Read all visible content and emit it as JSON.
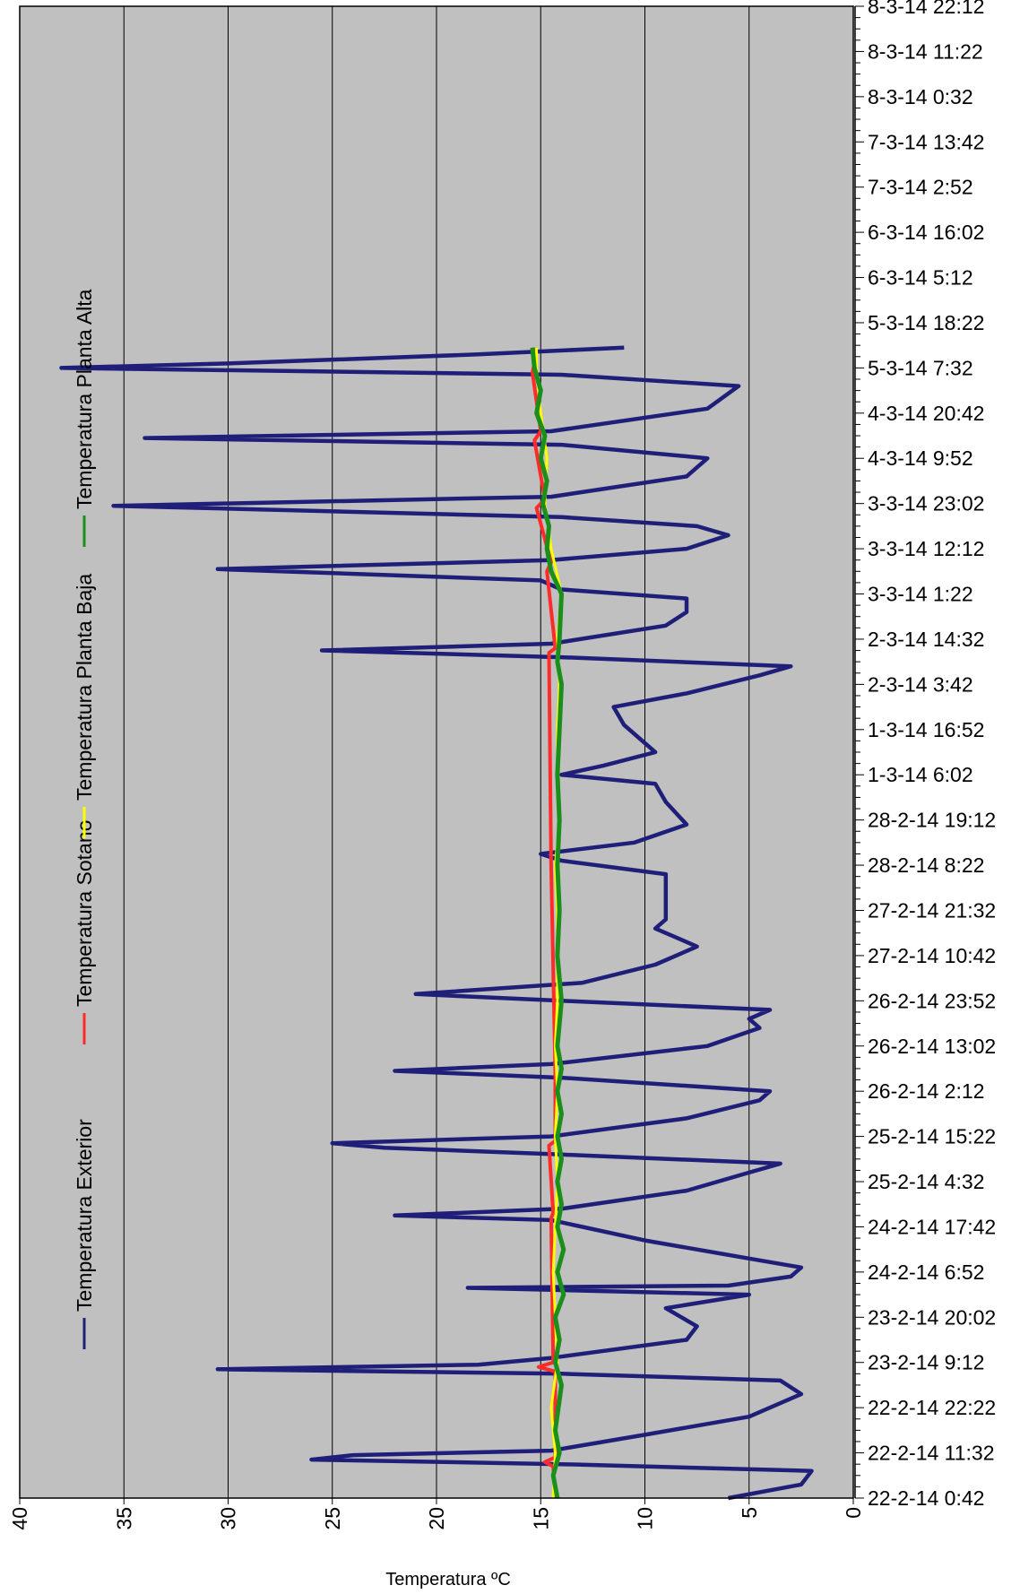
{
  "chart_data": {
    "type": "line",
    "orientation": "rotated-90",
    "xlabel": "Temperatura ºC",
    "ylabel": "",
    "xlim": [
      0,
      40
    ],
    "x_reversed": true,
    "x_ticks": [
      0,
      5,
      10,
      15,
      20,
      25,
      30,
      35,
      40
    ],
    "time_labels": [
      "22-2-14 0:42",
      "22-2-14 11:32",
      "22-2-14 22:22",
      "23-2-14 9:12",
      "23-2-14 20:02",
      "24-2-14 6:52",
      "24-2-14 17:42",
      "25-2-14 4:32",
      "25-2-14 15:22",
      "26-2-14 2:12",
      "26-2-14 13:02",
      "26-2-14 23:52",
      "27-2-14 10:42",
      "27-2-14 21:32",
      "28-2-14 8:22",
      "28-2-14 19:12",
      "1-3-14 6:02",
      "1-3-14 16:52",
      "2-3-14 3:42",
      "2-3-14 14:32",
      "3-3-14 1:22",
      "3-3-14 12:12",
      "3-3-14 23:02",
      "4-3-14 9:52",
      "4-3-14 20:42",
      "5-3-14 7:32",
      "5-3-14 18:22",
      "6-3-14 5:12",
      "6-3-14 16:02",
      "7-3-14 2:52",
      "7-3-14 13:42",
      "8-3-14 0:32",
      "8-3-14 11:22",
      "8-3-14 22:12"
    ],
    "grid": "vertical",
    "background": "#c0c0c0",
    "legend_position": "left, rotated",
    "series": [
      {
        "name": "Temperatura Exterior",
        "color": "#1f1f7a",
        "points": [
          [
            0,
            6
          ],
          [
            0.3,
            2.5
          ],
          [
            0.6,
            2
          ],
          [
            0.75,
            14
          ],
          [
            0.85,
            26
          ],
          [
            0.95,
            24
          ],
          [
            1.05,
            14.5
          ],
          [
            1.4,
            10
          ],
          [
            1.8,
            5
          ],
          [
            2.3,
            2.5
          ],
          [
            2.6,
            3.5
          ],
          [
            2.75,
            14
          ],
          [
            2.85,
            30.5
          ],
          [
            2.95,
            18
          ],
          [
            3.1,
            14.5
          ],
          [
            3.5,
            8
          ],
          [
            3.8,
            7.5
          ],
          [
            4.2,
            9
          ],
          [
            4.5,
            5
          ],
          [
            4.6,
            14
          ],
          [
            4.65,
            18.5
          ],
          [
            4.7,
            6
          ],
          [
            4.9,
            3
          ],
          [
            5.1,
            2.5
          ],
          [
            5.3,
            5
          ],
          [
            5.7,
            10
          ],
          [
            6.0,
            13
          ],
          [
            6.15,
            14.5
          ],
          [
            6.25,
            22
          ],
          [
            6.4,
            14
          ],
          [
            6.8,
            8
          ],
          [
            7.2,
            5
          ],
          [
            7.4,
            3.5
          ],
          [
            7.6,
            14
          ],
          [
            7.75,
            22.5
          ],
          [
            7.85,
            25
          ],
          [
            8.0,
            14.5
          ],
          [
            8.4,
            8
          ],
          [
            8.8,
            4.5
          ],
          [
            9.0,
            4
          ],
          [
            9.3,
            14
          ],
          [
            9.45,
            22
          ],
          [
            9.6,
            14.5
          ],
          [
            10.0,
            7
          ],
          [
            10.4,
            4.5
          ],
          [
            10.6,
            5
          ],
          [
            10.8,
            4
          ],
          [
            11.0,
            14
          ],
          [
            11.15,
            21
          ],
          [
            11.4,
            13
          ],
          [
            11.8,
            9.5
          ],
          [
            12.2,
            7.5
          ],
          [
            12.4,
            8.5
          ],
          [
            12.6,
            9.5
          ],
          [
            12.8,
            9
          ],
          [
            13.4,
            9
          ],
          [
            13.8,
            9
          ],
          [
            14.1,
            14
          ],
          [
            14.25,
            15
          ],
          [
            14.5,
            10.5
          ],
          [
            14.9,
            8
          ],
          [
            15.4,
            9
          ],
          [
            15.8,
            9.5
          ],
          [
            16.0,
            14
          ],
          [
            16.2,
            12
          ],
          [
            16.5,
            9.5
          ],
          [
            17.1,
            11
          ],
          [
            17.5,
            11.5
          ],
          [
            17.8,
            8
          ],
          [
            18.2,
            4.5
          ],
          [
            18.4,
            3
          ],
          [
            18.6,
            14
          ],
          [
            18.75,
            25.5
          ],
          [
            18.9,
            14.5
          ],
          [
            19.3,
            9
          ],
          [
            19.6,
            8
          ],
          [
            19.9,
            8
          ],
          [
            20.1,
            14
          ],
          [
            20.3,
            15
          ],
          [
            20.55,
            30.5
          ],
          [
            20.75,
            14.5
          ],
          [
            21.0,
            8
          ],
          [
            21.3,
            6
          ],
          [
            21.5,
            7.5
          ],
          [
            21.7,
            14
          ],
          [
            21.95,
            35.5
          ],
          [
            22.15,
            14.5
          ],
          [
            22.6,
            8
          ],
          [
            23.0,
            7
          ],
          [
            23.3,
            14
          ],
          [
            23.45,
            34
          ],
          [
            23.6,
            14.5
          ],
          [
            24.1,
            7
          ],
          [
            24.6,
            5.5
          ],
          [
            24.85,
            14
          ],
          [
            25.0,
            38
          ],
          [
            25.1,
            30
          ],
          [
            25.3,
            18
          ],
          [
            25.45,
            11
          ]
        ]
      },
      {
        "name": "Temperatura Sotano",
        "color": "#ff2a2a",
        "points": [
          [
            0,
            14.3
          ],
          [
            0.7,
            14.4
          ],
          [
            0.8,
            14.8
          ],
          [
            0.9,
            14.3
          ],
          [
            2.8,
            14.3
          ],
          [
            2.9,
            15.1
          ],
          [
            3.0,
            14.4
          ],
          [
            6.2,
            14.5
          ],
          [
            6.3,
            14.4
          ],
          [
            7.8,
            14.6
          ],
          [
            7.9,
            14.3
          ],
          [
            9.4,
            14.3
          ],
          [
            14.0,
            14.5
          ],
          [
            18.7,
            14.6
          ],
          [
            18.8,
            14.3
          ],
          [
            20.5,
            14.7
          ],
          [
            20.7,
            14.5
          ],
          [
            21.9,
            15.2
          ],
          [
            22.1,
            14.8
          ],
          [
            23.4,
            15.3
          ],
          [
            23.6,
            15.0
          ],
          [
            24.9,
            15.4
          ],
          [
            25.1,
            15.3
          ],
          [
            25.45,
            15.3
          ]
        ]
      },
      {
        "name": "Temperatura Planta Baja",
        "color": "#ffff00",
        "points": [
          [
            0,
            14.4
          ],
          [
            1,
            14.3
          ],
          [
            2,
            14.5
          ],
          [
            3,
            14.2
          ],
          [
            4,
            14.3
          ],
          [
            5,
            14.4
          ],
          [
            6,
            14.3
          ],
          [
            7,
            14.2
          ],
          [
            8,
            14.3
          ],
          [
            9,
            14.2
          ],
          [
            10,
            14.3
          ],
          [
            11,
            14.2
          ],
          [
            12,
            14.2
          ],
          [
            13,
            14.2
          ],
          [
            14,
            14.3
          ],
          [
            15,
            14.1
          ],
          [
            16,
            14.2
          ],
          [
            17,
            14.2
          ],
          [
            18,
            14.1
          ],
          [
            19,
            14.2
          ],
          [
            20,
            14.0
          ],
          [
            21,
            14.5
          ],
          [
            22,
            14.8
          ],
          [
            23,
            14.7
          ],
          [
            24,
            15.0
          ],
          [
            25,
            15.2
          ],
          [
            25.45,
            15.2
          ]
        ]
      },
      {
        "name": "Temperatura Planta Alta",
        "color": "#1a8f1a",
        "points": [
          [
            0,
            14.2
          ],
          [
            0.5,
            14.4
          ],
          [
            1,
            14.1
          ],
          [
            1.5,
            14.3
          ],
          [
            2.5,
            14.0
          ],
          [
            3.0,
            14.3
          ],
          [
            3.5,
            14.1
          ],
          [
            4.0,
            14.3
          ],
          [
            4.5,
            13.9
          ],
          [
            5,
            14.2
          ],
          [
            5.5,
            13.9
          ],
          [
            6,
            14.2
          ],
          [
            6.5,
            14.0
          ],
          [
            7,
            14.2
          ],
          [
            7.5,
            14.0
          ],
          [
            8,
            14.2
          ],
          [
            8.5,
            14.0
          ],
          [
            9,
            14.2
          ],
          [
            9.5,
            14.0
          ],
          [
            10,
            14.2
          ],
          [
            11,
            14.0
          ],
          [
            12,
            14.2
          ],
          [
            13,
            14.1
          ],
          [
            14,
            14.2
          ],
          [
            15,
            14.1
          ],
          [
            16,
            14.2
          ],
          [
            17,
            14.1
          ],
          [
            18,
            14.0
          ],
          [
            18.5,
            14.2
          ],
          [
            19,
            14.1
          ],
          [
            20,
            14.0
          ],
          [
            20.5,
            14.5
          ],
          [
            21,
            14.7
          ],
          [
            21.5,
            14.6
          ],
          [
            22,
            14.9
          ],
          [
            22.5,
            14.7
          ],
          [
            23,
            15.0
          ],
          [
            23.5,
            14.8
          ],
          [
            24,
            15.2
          ],
          [
            24.5,
            15.0
          ],
          [
            25,
            15.3
          ],
          [
            25.45,
            15.4
          ]
        ]
      }
    ]
  }
}
